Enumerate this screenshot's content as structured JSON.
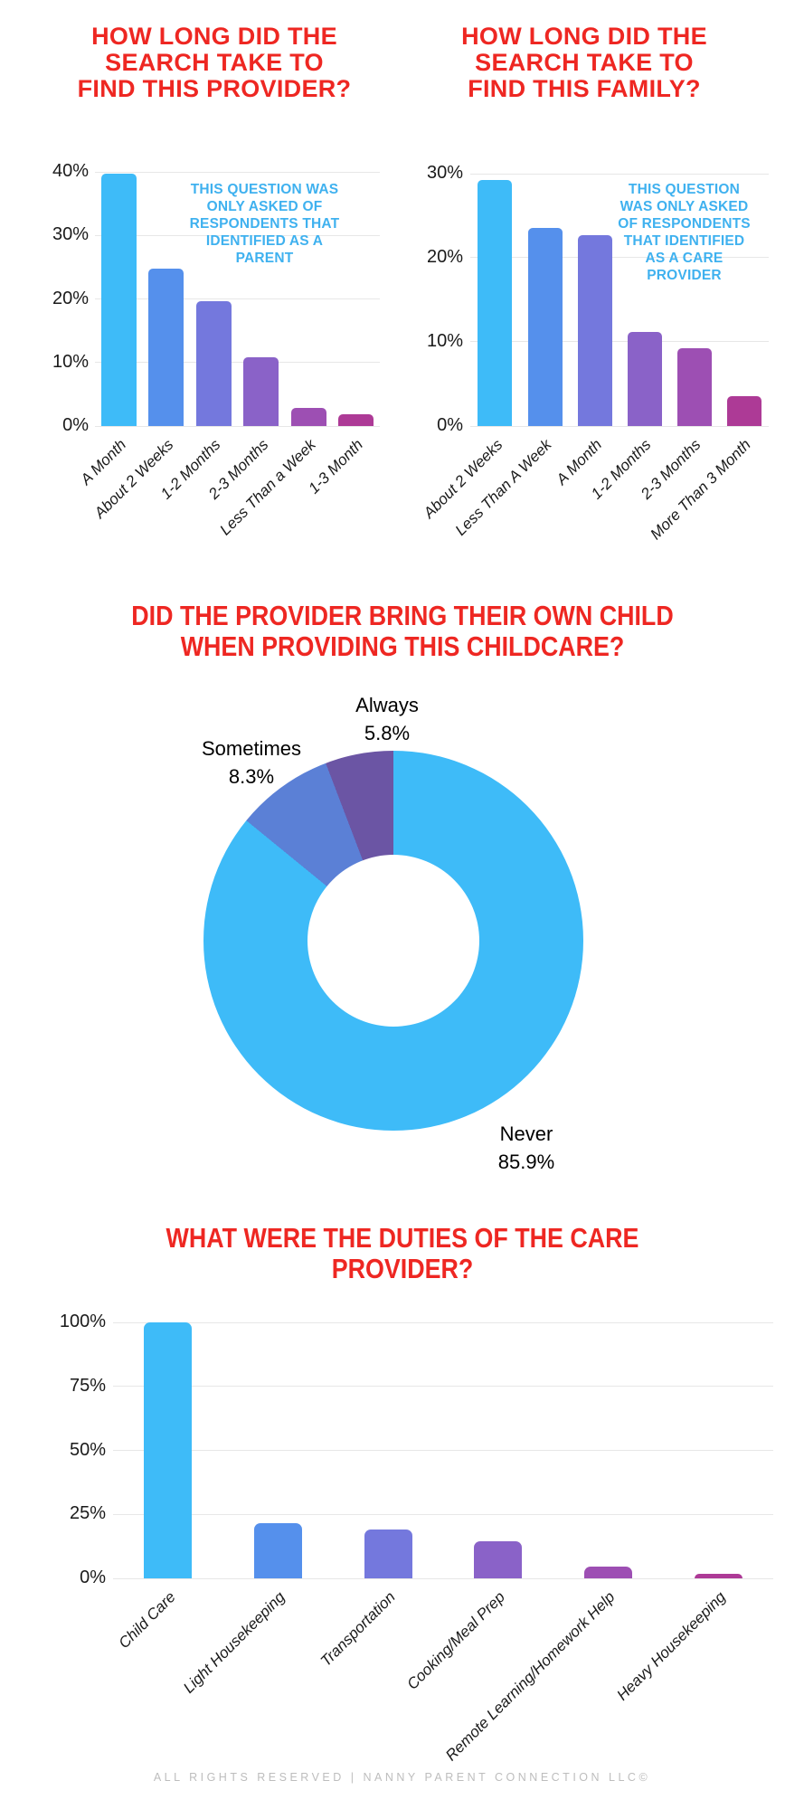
{
  "bar_palette": [
    "#3ebbf8",
    "#5590ec",
    "#7478dd",
    "#8a62c8",
    "#9d4fb3",
    "#ad3a96"
  ],
  "colors": {
    "title_red": "#ee2722",
    "annotation_blue": "#3fb1ef",
    "gridline_gray": "#e7e7e7",
    "footer_gray": "#bdbdbd",
    "donut_never": "#3ebbf8",
    "donut_sometimes": "#5b80d6",
    "donut_always": "#6b55a4"
  },
  "chart_data": [
    {
      "type": "bar",
      "title": "HOW LONG DID THE\nSEARCH TAKE TO\nFIND THIS PROVIDER?",
      "annotation": "THIS QUESTION WAS\nONLY ASKED OF\nRESPONDENTS THAT\nIDENTIFIED AS A\nPARENT",
      "categories": [
        "A Month",
        "About 2 Weeks",
        "1-2 Months",
        "2-3 Months",
        "Less Than a Week",
        "1-3 Month"
      ],
      "values": [
        39.7,
        24.7,
        19.7,
        10.8,
        2.9,
        1.9
      ],
      "yticks": [
        "40%",
        "30%",
        "20%",
        "10%",
        "0%"
      ],
      "ylim": [
        0,
        40
      ],
      "xlabel": "",
      "ylabel": "",
      "grid": "horizontal",
      "legend": "none"
    },
    {
      "type": "bar",
      "title": "HOW LONG DID THE\nSEARCH TAKE TO\nFIND THIS FAMILY?",
      "annotation": "THIS QUESTION\nWAS ONLY ASKED\nOF RESPONDENTS\nTHAT IDENTIFIED\nAS A CARE\nPROVIDER",
      "categories": [
        "About 2 Weeks",
        "Less Than A Week",
        "A Month",
        "1-2 Months",
        "2-3 Months",
        "More Than 3 Month"
      ],
      "values": [
        29.3,
        23.5,
        22.7,
        11.2,
        9.3,
        3.6
      ],
      "yticks": [
        "30%",
        "20%",
        "10%",
        "0%"
      ],
      "ylim": [
        0,
        30
      ],
      "xlabel": "",
      "ylabel": "",
      "grid": "horizontal",
      "legend": "none"
    },
    {
      "type": "pie",
      "subtype": "donut",
      "title": "DID THE PROVIDER BRING THEIR OWN CHILD\nWHEN PROVIDING THIS CHILDCARE?",
      "start_angle_deg": 0,
      "direction": "clockwise",
      "slices": [
        {
          "label": "Never",
          "value": 85.9,
          "pct_label": "85.9%",
          "color": "#3ebbf8"
        },
        {
          "label": "Sometimes",
          "value": 8.3,
          "pct_label": "8.3%",
          "color": "#5b80d6"
        },
        {
          "label": "Always",
          "value": 5.8,
          "pct_label": "5.8%",
          "color": "#6b55a4"
        }
      ],
      "legend": "labels-outside"
    },
    {
      "type": "bar",
      "title": "WHAT WERE THE DUTIES OF THE CARE\nPROVIDER?",
      "annotation": "",
      "categories": [
        "Child Care",
        "Light Housekeeping",
        "Transportation",
        "Cooking/Meal Prep",
        "Remote Learning/Homework Help",
        "Heavy Housekeeping"
      ],
      "values": [
        100,
        21.5,
        19,
        14.5,
        4.5,
        1.8
      ],
      "yticks": [
        "100%",
        "75%",
        "50%",
        "25%",
        "0%"
      ],
      "ylim": [
        0,
        100
      ],
      "xlabel": "",
      "ylabel": "",
      "grid": "horizontal",
      "legend": "none"
    }
  ],
  "footer": "ALL RIGHTS RESERVED | NANNY PARENT CONNECTION LLC©"
}
